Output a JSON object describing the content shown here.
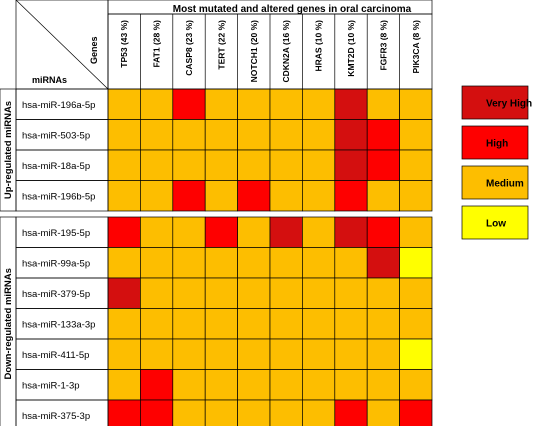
{
  "chart_data": {
    "type": "heatmap",
    "title": "Most mutated and altered genes in oral carcinoma",
    "row_header": "miRNAs",
    "col_header": "Genes",
    "columns": [
      "TP53 (43 %)",
      "FAT1 (28 %)",
      "CASP8 (23 %)",
      "TERT (22 %)",
      "NOTCH1 (20 %)",
      "CDKN2A (16 %)",
      "HRAS (10 %)",
      "KMT2D (10 %)",
      "FGFR3 (8 %)",
      "PIK3CA (8 %)"
    ],
    "groups": [
      {
        "name": "Up-regulated miRNAs",
        "rows": [
          "hsa-miR-196a-5p",
          "hsa-miR-503-5p",
          "hsa-miR-18a-5p",
          "hsa-miR-196b-5p"
        ]
      },
      {
        "name": "Down-regulated miRNAs",
        "rows": [
          "hsa-miR-195-5p",
          "hsa-miR-99a-5p",
          "hsa-miR-379-5p",
          "hsa-miR-133a-3p",
          "hsa-miR-411-5p",
          "hsa-miR-1-3p",
          "hsa-miR-375-3p"
        ]
      }
    ],
    "levels": [
      "Low",
      "Medium",
      "High",
      "Very High"
    ],
    "values": [
      [
        1,
        1,
        2,
        1,
        1,
        1,
        1,
        3,
        1,
        1
      ],
      [
        1,
        1,
        1,
        1,
        1,
        1,
        1,
        3,
        2,
        1
      ],
      [
        1,
        1,
        1,
        1,
        1,
        1,
        1,
        3,
        2,
        1
      ],
      [
        1,
        1,
        2,
        1,
        2,
        1,
        1,
        2,
        1,
        1
      ],
      [
        2,
        1,
        1,
        2,
        1,
        3,
        1,
        3,
        2,
        1
      ],
      [
        1,
        1,
        1,
        1,
        1,
        1,
        1,
        1,
        3,
        0
      ],
      [
        3,
        1,
        1,
        1,
        1,
        1,
        1,
        1,
        1,
        1
      ],
      [
        1,
        1,
        1,
        1,
        1,
        1,
        1,
        1,
        1,
        1
      ],
      [
        1,
        1,
        1,
        1,
        1,
        1,
        1,
        1,
        1,
        0
      ],
      [
        1,
        2,
        1,
        1,
        1,
        1,
        1,
        1,
        1,
        1
      ],
      [
        2,
        2,
        1,
        1,
        1,
        1,
        1,
        2,
        1,
        2
      ]
    ],
    "legend": {
      "placement": "right",
      "items": [
        {
          "label": "Very High",
          "color": "#d40f0f"
        },
        {
          "label": "High",
          "color": "#fe0000"
        },
        {
          "label": "Medium",
          "color": "#fdbe00"
        },
        {
          "label": "Low",
          "color": "#ffff00"
        }
      ]
    },
    "colors": {
      "0": "#ffff00",
      "1": "#fdbe00",
      "2": "#fe0000",
      "3": "#d40f0f"
    }
  }
}
